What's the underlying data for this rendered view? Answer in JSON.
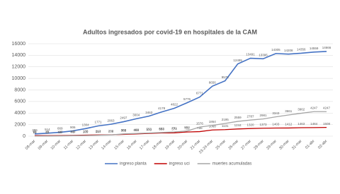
{
  "chart_data": {
    "type": "line",
    "title": "Adultos ingresados por covid-19 en hospitales de la CAM",
    "categories": [
      "08-mar",
      "09-mar",
      "10-mar",
      "11-mar",
      "12-mar",
      "13-mar",
      "14-mar",
      "15-mar",
      "16-mar",
      "17-mar",
      "18-mar",
      "19-mar",
      "20-mar",
      "21-mar",
      "23-24-mar",
      "25-mar",
      "26-mar",
      "27-mar",
      "28-mar",
      "29-mar",
      "30-mar",
      "31-mar",
      "01-abr",
      "02-abr"
    ],
    "series": [
      {
        "name": "ingreso planta",
        "color": "#4472c4",
        "values": [
          386,
          514,
          669,
          906,
          1304,
          1771,
          2063,
          2497,
          3004,
          3463,
          4178,
          4822,
          5776,
          6771,
          8656,
          9570,
          12495,
          13491,
          13395,
          14305,
          14208,
          14356,
          14559,
          14666
        ]
      },
      {
        "name": "ingreso uci",
        "color": "#c00000",
        "values": [
          99,
          85,
          103,
          135,
          180,
          213,
          232,
          302,
          388,
          470,
          553,
          574,
          722,
          786,
          1068,
          1131,
          1244,
          1320,
          1373,
          1403,
          1412,
          1463,
          1484,
          1508
        ]
      },
      {
        "name": "muertes acumuladas",
        "color": "#a5a5a5",
        "values": [
          16,
          22,
          39,
          81,
          109,
          154,
          208,
          388,
          463,
          553,
          632,
          731,
          892,
          1576,
          1864,
          2195,
          2559,
          2787,
          2981,
          3343,
          3661,
          3962,
          4247,
          4247
        ]
      }
    ],
    "ylim": [
      0,
      16000
    ],
    "yticks": [
      0,
      2000,
      4000,
      6000,
      8000,
      10000,
      12000,
      14000,
      16000
    ],
    "grid": true
  }
}
